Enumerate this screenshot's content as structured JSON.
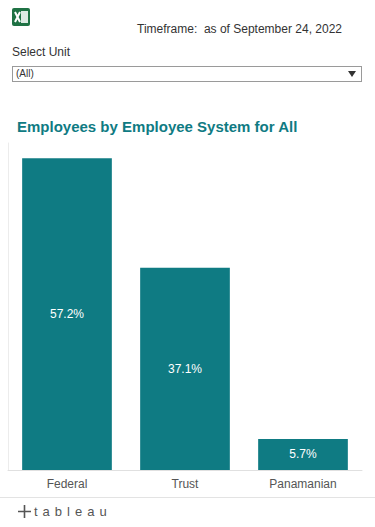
{
  "header": {
    "timeframe": "Timeframe:  as of September 24, 2022",
    "filter_label": "Select Unit",
    "filter_value": "(All)"
  },
  "footer": {
    "logo": "tableau"
  },
  "chart_data": {
    "type": "bar",
    "title": "Employees by Employee System for All",
    "categories": [
      "Federal",
      "Trust",
      "Panamanian"
    ],
    "values": [
      57.2,
      37.1,
      5.7
    ],
    "value_labels": [
      "57.2%",
      "37.1%",
      "5.7%"
    ],
    "color": "#0f7b83",
    "ylim": [
      0,
      60
    ],
    "grid": false,
    "data_labels": true,
    "tick_labels": "x"
  }
}
